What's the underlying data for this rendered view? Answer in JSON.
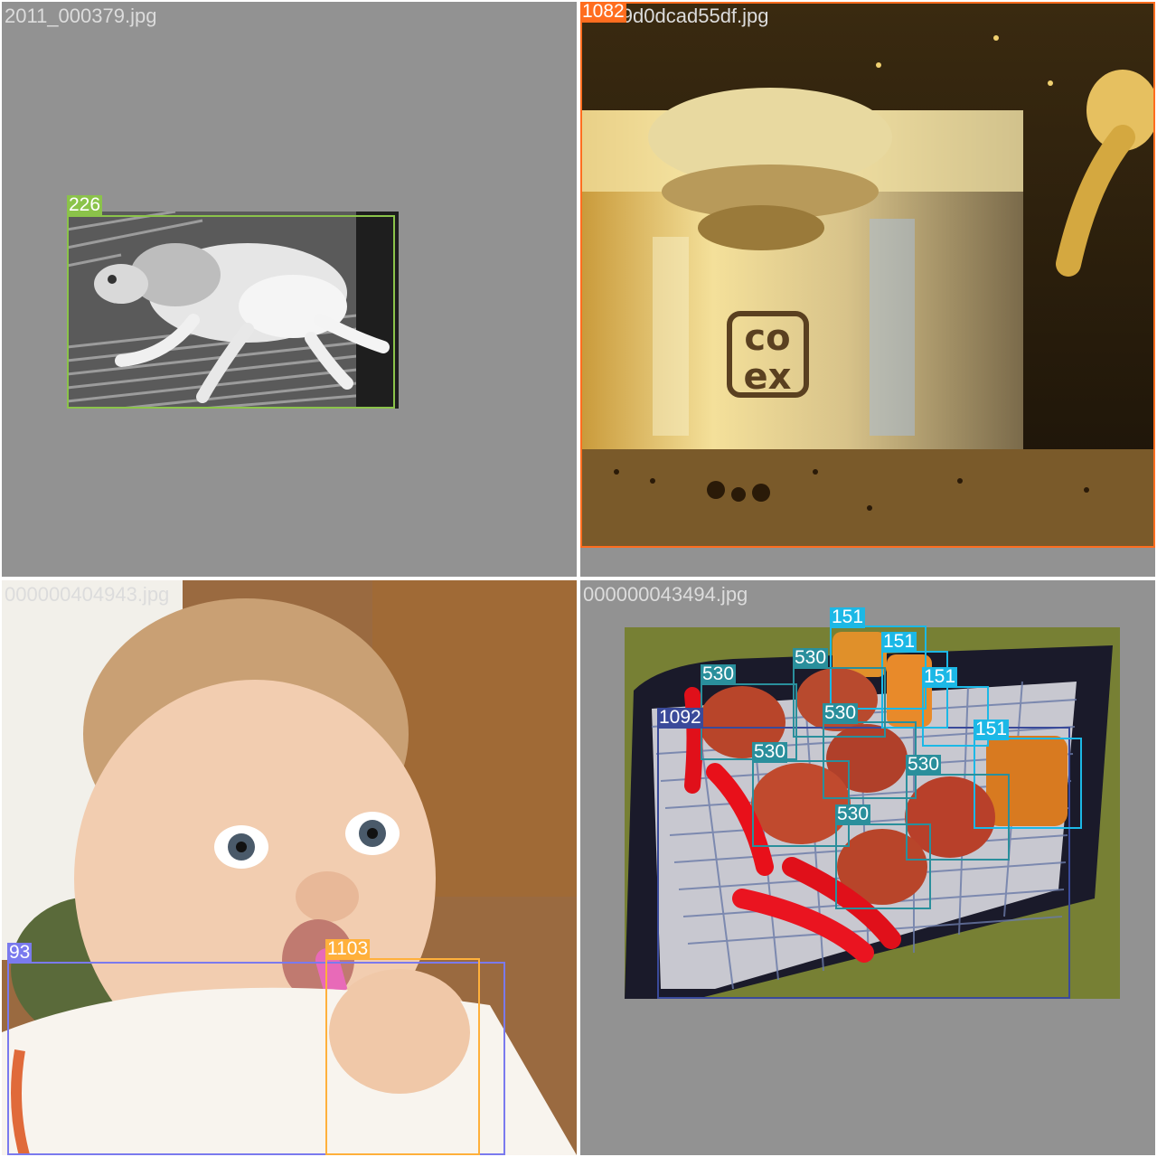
{
  "panels": [
    {
      "filename": "2011_000379.jpg",
      "detections": [
        {
          "label": "226",
          "color": "#8bc34a"
        }
      ]
    },
    {
      "filename": "0...29d0dcad55df.jpg",
      "detections": [
        {
          "label": "1082",
          "color": "#ff6d1f"
        }
      ]
    },
    {
      "filename": "000000404943.jpg",
      "detections": [
        {
          "label": "93",
          "color": "#7a7aee"
        },
        {
          "label": "1103",
          "color": "#ffb03b"
        }
      ]
    },
    {
      "filename": "000000043494.jpg",
      "detections": [
        {
          "label": "151",
          "color": "#1cb8e6"
        },
        {
          "label": "151",
          "color": "#1cb8e6"
        },
        {
          "label": "151",
          "color": "#1cb8e6"
        },
        {
          "label": "151",
          "color": "#1cb8e6"
        },
        {
          "label": "530",
          "color": "#2a8f9c"
        },
        {
          "label": "530",
          "color": "#2a8f9c"
        },
        {
          "label": "530",
          "color": "#2a8f9c"
        },
        {
          "label": "530",
          "color": "#2a8f9c"
        },
        {
          "label": "530",
          "color": "#2a8f9c"
        },
        {
          "label": "530",
          "color": "#2a8f9c"
        },
        {
          "label": "1092",
          "color": "#3a4a9a"
        }
      ]
    }
  ],
  "image_scenes": {
    "tl": "grayscale cat lying on a striped couch",
    "tr": "close-up of a chrome espresso machine",
    "bl": "baby chewing a pink spoon",
    "br": "sausages and burger patties on a grill"
  }
}
